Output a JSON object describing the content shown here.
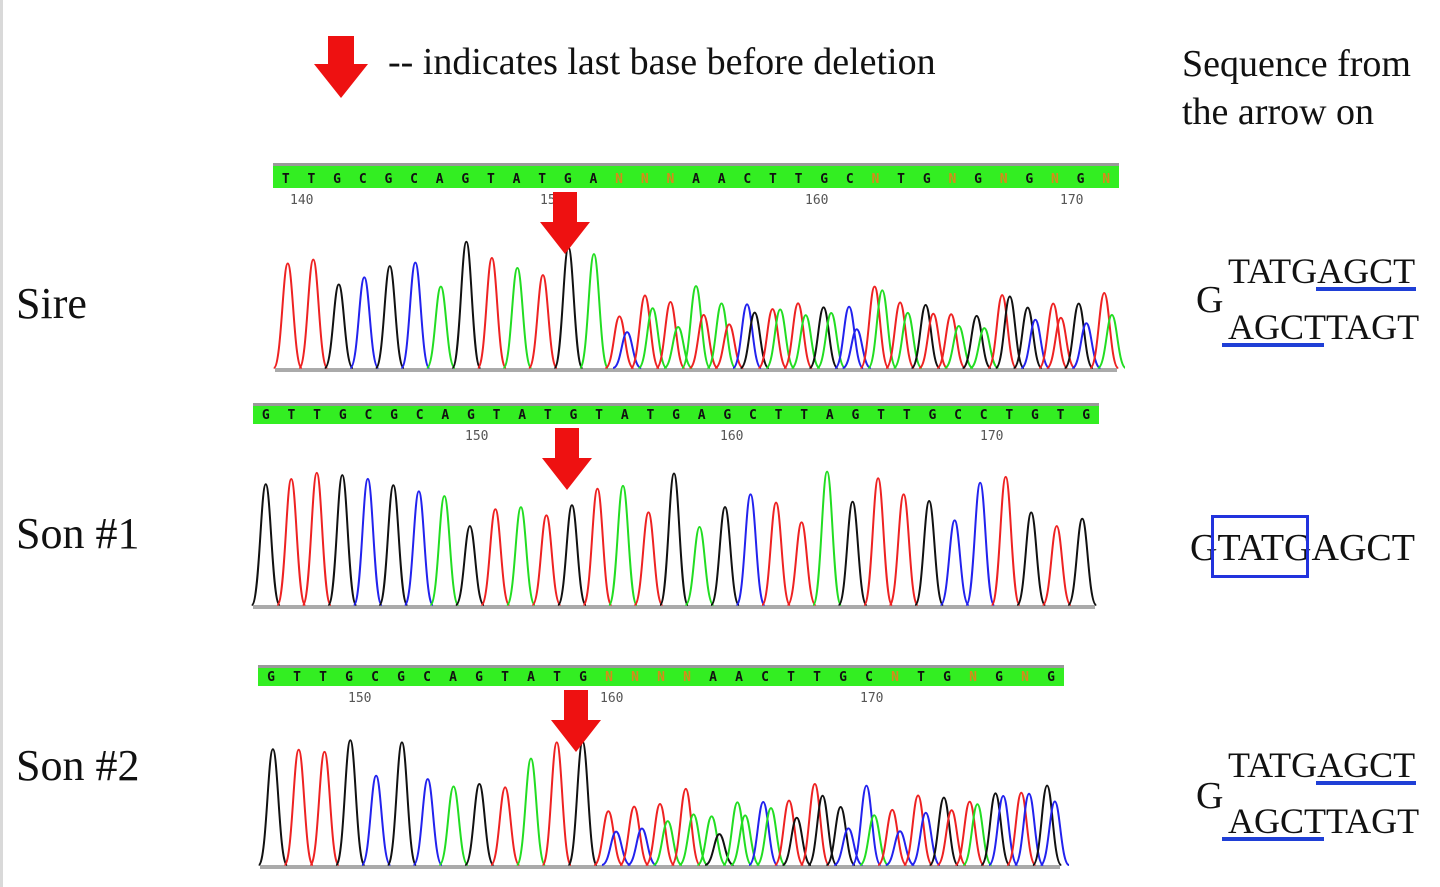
{
  "legend": {
    "text": "-- indicates last base before deletion",
    "arrow_color": "#ee1111"
  },
  "header": {
    "line1": "Sequence from",
    "line2": "the arrow on"
  },
  "colors": {
    "A": "#22dd22",
    "C": "#2222ee",
    "G": "#111111",
    "T": "#ee2222",
    "N": "#ee2222",
    "letter_default": "#111111",
    "letter_N": "#d68a1a",
    "bar": "#33ee22",
    "bar_top": "#999999",
    "baseline": "#aaaaaa",
    "box": "#2233dd",
    "underline": "#1f3fd6"
  },
  "panels": [
    {
      "label": "Sire",
      "bases": "TTGCGCAGTATGANNNAACTTGCNTGNGNGNGN",
      "ticks": [
        "140",
        "150",
        "160",
        "170"
      ],
      "right": {
        "prefix": "G",
        "line1": "TATGAGCT",
        "line2": "AGCTTAGT"
      }
    },
    {
      "label": "Son #1",
      "bases": "GTTGCGCAGTATGTATGAGCTTAGTTGCCTGTG",
      "ticks": [
        "150",
        "160",
        "170"
      ],
      "right": {
        "line1": "GTATGAGCT"
      }
    },
    {
      "label": "Son #2",
      "bases": "GTTGCGCAGTATGNNNNAACTTGCNTGNGNG",
      "ticks": [
        "150",
        "160",
        "170"
      ],
      "right": {
        "prefix": "G",
        "line1": "TATGAGCT",
        "line2": "AGCTTAGT"
      }
    }
  ]
}
